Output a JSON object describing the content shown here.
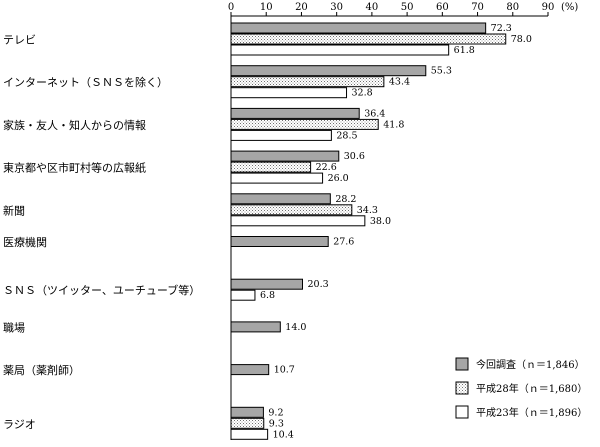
{
  "chart_data": {
    "type": "bar",
    "orientation": "horizontal",
    "unit": "(%)",
    "xlim": [
      0,
      90
    ],
    "xticks": [
      "0",
      "10",
      "20",
      "30",
      "40",
      "50",
      "60",
      "70",
      "80",
      "90"
    ],
    "categories": [
      "テレビ",
      "インターネット（ＳＮＳを除く）",
      "家族・友人・知人からの情報",
      "東京都や区市町村等の広報紙",
      "新聞",
      "医療機関",
      "ＳＮＳ（ツイッター、ユーチューブ等）",
      "職場",
      "薬局（薬剤師）",
      "ラジオ"
    ],
    "series": [
      {
        "name": "今回調査（ｎ＝1,846）",
        "fill": "#a6a6a6",
        "pattern": "solid",
        "values": [
          72.3,
          55.3,
          36.4,
          30.6,
          28.2,
          27.6,
          20.3,
          14.0,
          10.7,
          9.2
        ],
        "labels": [
          "72.3",
          "55.3",
          "36.4",
          "30.6",
          "28.2",
          "27.6",
          "20.3",
          "14.0",
          "10.7",
          "9.2"
        ]
      },
      {
        "name": "平成28年（ｎ＝1,680）",
        "fill": "#ffffff",
        "pattern": "dots",
        "values": [
          78.0,
          43.4,
          41.8,
          22.6,
          34.3,
          null,
          null,
          null,
          null,
          9.3
        ],
        "labels": [
          "78.0",
          "43.4",
          "41.8",
          "22.6",
          "34.3",
          "",
          "",
          "",
          "",
          "9.3"
        ]
      },
      {
        "name": "平成23年（ｎ＝1,896）",
        "fill": "#ffffff",
        "pattern": "none",
        "values": [
          61.8,
          32.8,
          28.5,
          26.0,
          38.0,
          null,
          6.8,
          null,
          null,
          10.4
        ],
        "labels": [
          "61.8",
          "32.8",
          "28.5",
          "26.0",
          "38.0",
          "",
          "6.8",
          "",
          "",
          "10.4"
        ]
      }
    ],
    "legend_position": "bottom-right",
    "grid": false
  }
}
